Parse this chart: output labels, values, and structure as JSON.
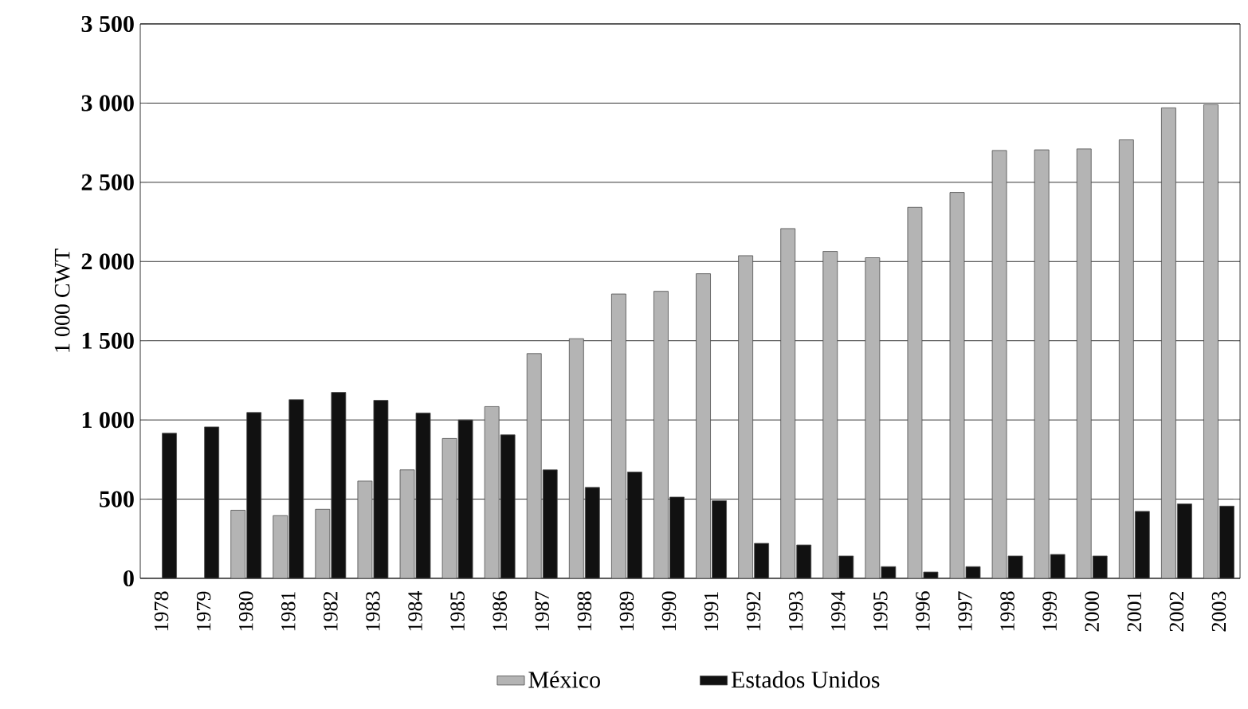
{
  "chart_data": {
    "type": "bar",
    "ylabel": "1 000 CWT",
    "categories": [
      "1978",
      "1979",
      "1980",
      "1981",
      "1982",
      "1983",
      "1984",
      "1985",
      "1986",
      "1987",
      "1988",
      "1989",
      "1990",
      "1991",
      "1992",
      "1993",
      "1994",
      "1995",
      "1996",
      "1997",
      "1998",
      "1999",
      "2000",
      "2001",
      "2002",
      "2003"
    ],
    "series": [
      {
        "name": "México",
        "color": "#b4b4b4",
        "values": [
          null,
          null,
          430,
          396,
          436,
          614,
          685,
          883,
          1084,
          1419,
          1513,
          1795,
          1812,
          1923,
          2037,
          2208,
          2064,
          2024,
          2342,
          2436,
          2701,
          2705,
          2711,
          2768,
          2970,
          2990
        ]
      },
      {
        "name": "Estados Unidos",
        "color": "#111111",
        "values": [
          916,
          956,
          1047,
          1128,
          1174,
          1124,
          1044,
          1000,
          906,
          685,
          574,
          671,
          513,
          490,
          221,
          211,
          141,
          74,
          40,
          74,
          141,
          151,
          141,
          423,
          470,
          456
        ]
      }
    ],
    "ylim": [
      0,
      3500
    ],
    "yticks": [
      0,
      500,
      {
        "value": 1000,
        "label": "1 000"
      },
      {
        "value": 1500,
        "label": "1 500"
      },
      {
        "value": 2000,
        "label": "2 000"
      },
      {
        "value": 2500,
        "label": "2 500"
      },
      {
        "value": 3000,
        "label": "3 000"
      },
      {
        "value": 3500,
        "label": "3 500"
      }
    ],
    "grid": "y",
    "legend": "bottom"
  }
}
